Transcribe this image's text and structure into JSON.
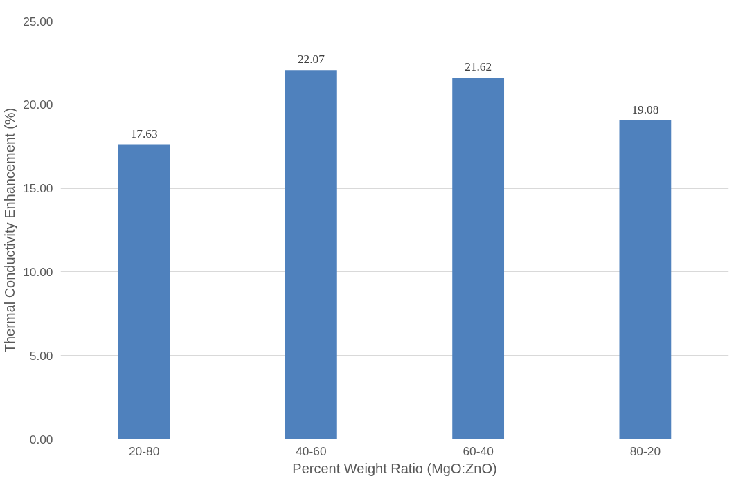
{
  "chart_data": {
    "type": "bar",
    "xlabel": "Percent Weight Ratio (MgO:ZnO)",
    "ylabel": "Thermal Conductivity Enhancement (%)",
    "categories": [
      "20-80",
      "40-60",
      "60-40",
      "80-20"
    ],
    "values": [
      17.63,
      22.07,
      21.62,
      19.08
    ],
    "color": "#4f81bd",
    "ylim": [
      0,
      25
    ],
    "yticks": [
      {
        "value": 0,
        "label": "0.00"
      },
      {
        "value": 5,
        "label": "5.00"
      },
      {
        "value": 10,
        "label": "10.00"
      },
      {
        "value": 15,
        "label": "15.00"
      },
      {
        "value": 20,
        "label": "20.00"
      },
      {
        "value": 25,
        "label": "25.00"
      }
    ],
    "grid": "y",
    "data_labels": true
  }
}
